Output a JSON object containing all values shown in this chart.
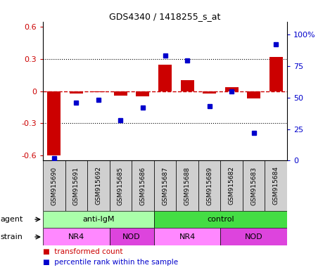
{
  "title": "GDS4340 / 1418255_s_at",
  "samples": [
    "GSM915690",
    "GSM915691",
    "GSM915692",
    "GSM915685",
    "GSM915686",
    "GSM915687",
    "GSM915688",
    "GSM915689",
    "GSM915682",
    "GSM915683",
    "GSM915684"
  ],
  "red_values": [
    -0.6,
    -0.02,
    -0.01,
    -0.04,
    -0.05,
    0.25,
    0.1,
    -0.02,
    0.04,
    -0.07,
    0.32
  ],
  "blue_values": [
    2,
    46,
    48,
    32,
    42,
    83,
    79,
    43,
    55,
    22,
    92
  ],
  "ylim_left": [
    -0.65,
    0.65
  ],
  "ylim_right": [
    0,
    110
  ],
  "yticks_left": [
    -0.6,
    -0.3,
    0.0,
    0.3,
    0.6
  ],
  "yticks_right": [
    0,
    25,
    50,
    75,
    100
  ],
  "ytick_labels_right": [
    "0",
    "25",
    "50",
    "75",
    "100%"
  ],
  "hlines_dotted": [
    -0.3,
    0.3
  ],
  "hline_zero": 0.0,
  "red_color": "#cc0000",
  "blue_color": "#0000cc",
  "agent_groups": [
    {
      "label": "anti-IgM",
      "start": 0,
      "end": 5,
      "color": "#aaffaa"
    },
    {
      "label": "control",
      "start": 5,
      "end": 11,
      "color": "#44dd44"
    }
  ],
  "strain_groups": [
    {
      "label": "NR4",
      "start": 0,
      "end": 3,
      "color": "#ff88ff"
    },
    {
      "label": "NOD",
      "start": 3,
      "end": 5,
      "color": "#dd44dd"
    },
    {
      "label": "NR4",
      "start": 5,
      "end": 8,
      "color": "#ff88ff"
    },
    {
      "label": "NOD",
      "start": 8,
      "end": 11,
      "color": "#dd44dd"
    }
  ],
  "sample_bg": "#d0d0d0",
  "legend_items": [
    {
      "label": "transformed count",
      "color": "#cc0000"
    },
    {
      "label": "percentile rank within the sample",
      "color": "#0000cc"
    }
  ],
  "bar_width": 0.6
}
